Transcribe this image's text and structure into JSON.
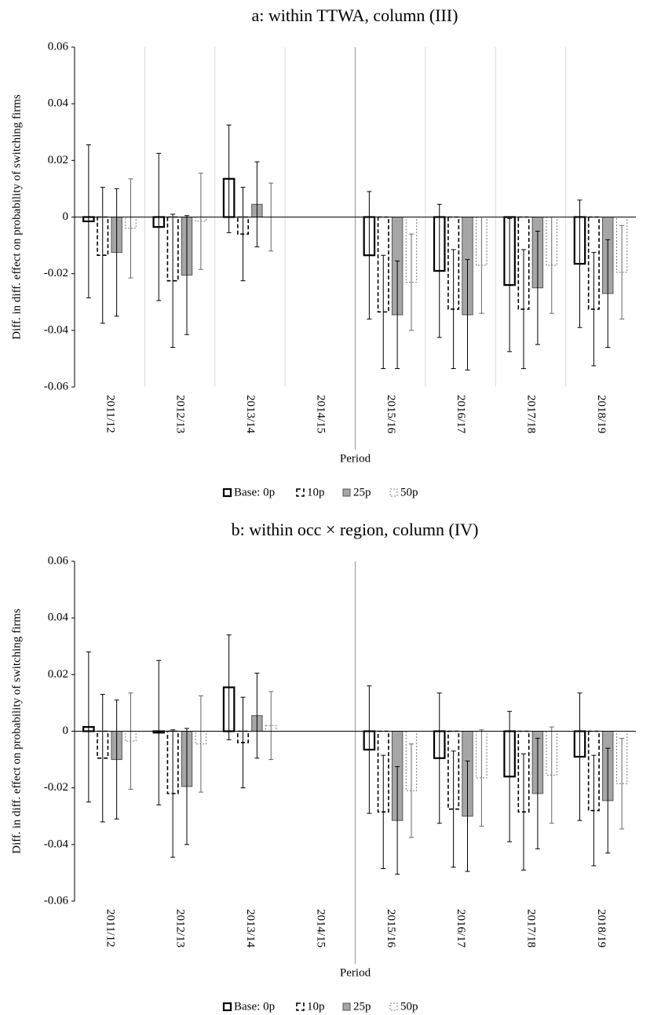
{
  "chart_data": [
    {
      "type": "bar",
      "title": "a: within TTWA, column (III)",
      "x_label": "Period",
      "y_label": "Diff. in diff. effect on probability of switching firms",
      "categories": [
        "2011/12",
        "2012/13",
        "2013/14",
        "2014/15",
        "2015/16",
        "2016/17",
        "2017/18",
        "2018/19"
      ],
      "series": [
        {
          "name": "Base: 0p",
          "color": "#ffffff",
          "values": [
            -0.0015,
            -0.0035,
            0.0135,
            0,
            -0.0135,
            -0.019,
            -0.024,
            -0.0165
          ],
          "errors": [
            0.027,
            0.026,
            0.019,
            0,
            0.0225,
            0.0235,
            0.0235,
            0.0225
          ]
        },
        {
          "name": "10p",
          "color": "#ffffff",
          "values": [
            -0.0135,
            -0.0225,
            -0.006,
            0,
            -0.0335,
            -0.0325,
            -0.0325,
            -0.0325
          ],
          "errors": [
            0.024,
            0.0235,
            0.0165,
            0,
            0.02,
            0.021,
            0.021,
            0.02
          ]
        },
        {
          "name": "25p",
          "color": "#a6a6a6",
          "values": [
            -0.0125,
            -0.0205,
            0.0045,
            0,
            -0.0345,
            -0.0345,
            -0.025,
            -0.027
          ],
          "errors": [
            0.0225,
            0.021,
            0.015,
            0,
            0.019,
            0.0195,
            0.02,
            0.019
          ]
        },
        {
          "name": "50p",
          "color": "#ffffff",
          "values": [
            -0.004,
            -0.0015,
            0,
            0,
            -0.023,
            -0.017,
            -0.017,
            -0.0195
          ],
          "errors": [
            0.0175,
            0.017,
            0.012,
            0,
            0.017,
            0.017,
            0.017,
            0.0165
          ]
        }
      ],
      "ylim": [
        -0.06,
        0.06
      ],
      "yticks": [
        -0.06,
        -0.04,
        -0.02,
        0,
        0.02,
        0.04,
        0.06
      ],
      "grid": true,
      "legend": "bottom"
    },
    {
      "type": "bar",
      "title": "b: within occ × region, column (IV)",
      "x_label": "Period",
      "y_label": "Diff. in diff. effect on probability of switching firms",
      "categories": [
        "2011/12",
        "2012/13",
        "2013/14",
        "2014/15",
        "2015/16",
        "2016/17",
        "2017/18",
        "2018/19"
      ],
      "series": [
        {
          "name": "Base: 0p",
          "color": "#ffffff",
          "values": [
            0.0015,
            -0.0005,
            0.0155,
            0,
            -0.0065,
            -0.0095,
            -0.016,
            -0.009
          ],
          "errors": [
            0.0265,
            0.0255,
            0.0185,
            0,
            0.0225,
            0.023,
            0.023,
            0.0225
          ]
        },
        {
          "name": "10p",
          "color": "#ffffff",
          "values": [
            -0.0095,
            -0.022,
            -0.004,
            0,
            -0.0285,
            -0.0275,
            -0.0285,
            -0.028
          ],
          "errors": [
            0.0225,
            0.0225,
            0.016,
            0,
            0.02,
            0.0205,
            0.0205,
            0.0195
          ]
        },
        {
          "name": "25p",
          "color": "#a6a6a6",
          "values": [
            -0.01,
            -0.0195,
            0.0055,
            0,
            -0.0315,
            -0.03,
            -0.022,
            -0.0245
          ],
          "errors": [
            0.021,
            0.0205,
            0.015,
            0,
            0.019,
            0.0195,
            0.0195,
            0.0185
          ]
        },
        {
          "name": "50p",
          "color": "#ffffff",
          "values": [
            -0.0035,
            -0.0045,
            0.002,
            0,
            -0.021,
            -0.0165,
            -0.0155,
            -0.0185
          ],
          "errors": [
            0.017,
            0.017,
            0.012,
            0,
            0.0165,
            0.017,
            0.017,
            0.016
          ]
        }
      ],
      "ylim": [
        -0.06,
        0.06
      ],
      "yticks": [
        -0.06,
        -0.04,
        -0.02,
        0,
        0.02,
        0.04,
        0.06
      ],
      "grid": false,
      "legend": "bottom"
    }
  ]
}
